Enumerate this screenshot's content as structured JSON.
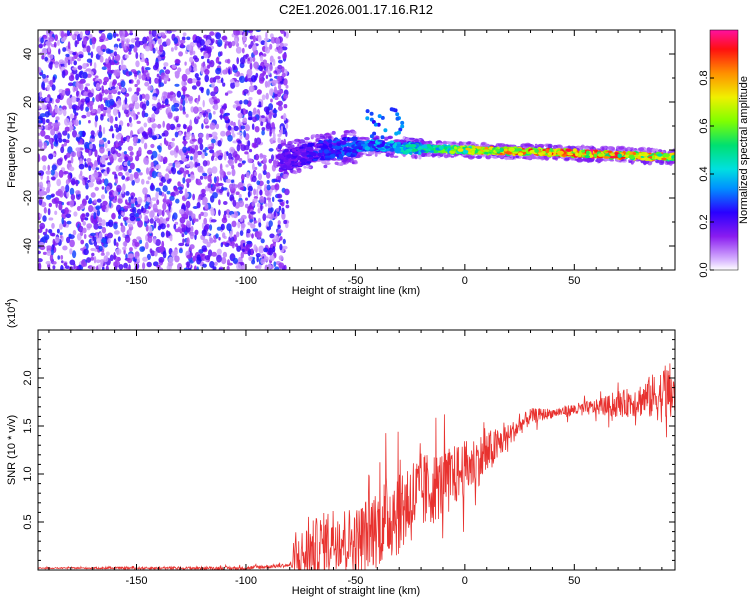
{
  "title": "C2E1.2026.001.17.16.R12",
  "chart_data": [
    {
      "type": "heatmap",
      "xlabel": "Height of straight line (km)",
      "ylabel": "Frequency (Hz)",
      "xlim": [
        -195,
        96
      ],
      "ylim": [
        -50,
        50
      ],
      "xticks": [
        -150,
        -100,
        -50,
        0,
        50
      ],
      "yticks": [
        -40,
        -20,
        0,
        20,
        40
      ],
      "colorbar": {
        "label": "Normalized spectral amplitude",
        "range": [
          0,
          1
        ],
        "ticks": [
          "0.0",
          "0.2",
          "0.4",
          "0.6",
          "0.8"
        ]
      },
      "regions": [
        {
          "name": "noise",
          "x_range": [
            -195,
            -85
          ],
          "frequency_spread": [
            -50,
            50
          ],
          "amplitude": [
            0.05,
            0.3
          ]
        },
        {
          "name": "signal",
          "x_range": [
            -85,
            96
          ],
          "frequency_trend": [
            [
              -85,
              -5
            ],
            [
              -65,
              0
            ],
            [
              -40,
              2
            ],
            [
              -30,
              1
            ],
            [
              0,
              0
            ],
            [
              40,
              -1
            ],
            [
              96,
              -3
            ]
          ],
          "amplitude_trend": [
            [
              -85,
              0.2
            ],
            [
              -60,
              0.3
            ],
            [
              -30,
              0.45
            ],
            [
              -10,
              0.6
            ],
            [
              10,
              0.85
            ],
            [
              60,
              0.95
            ],
            [
              96,
              0.8
            ]
          ]
        }
      ]
    },
    {
      "type": "line",
      "xlabel": "Height of straight line (km)",
      "ylabel": "SNR (10 * v/v)",
      "y_multiplier": "(x10",
      "y_multiplier_exp": "4",
      "y_multiplier_close": ")",
      "xlim": [
        -195,
        96
      ],
      "ylim": [
        0,
        2.5
      ],
      "xticks": [
        -150,
        -100,
        -50,
        0,
        50
      ],
      "yticks": [
        "0.5",
        "1.0",
        "1.5",
        "2.0"
      ],
      "color": "#e8322f",
      "envelope": [
        [
          -195,
          0.02
        ],
        [
          -100,
          0.02
        ],
        [
          -80,
          0.05
        ],
        [
          -70,
          0.2
        ],
        [
          -60,
          0.35
        ],
        [
          -50,
          0.3
        ],
        [
          -40,
          0.45
        ],
        [
          -30,
          0.65
        ],
        [
          -20,
          0.8
        ],
        [
          -10,
          0.9
        ],
        [
          0,
          1.05
        ],
        [
          10,
          1.2
        ],
        [
          20,
          1.4
        ],
        [
          30,
          1.6
        ],
        [
          50,
          1.67
        ],
        [
          70,
          1.72
        ],
        [
          85,
          1.8
        ],
        [
          96,
          1.85
        ]
      ],
      "noise_amplitude": [
        [
          -195,
          0.005
        ],
        [
          -80,
          0.02
        ],
        [
          -75,
          0.3
        ],
        [
          -50,
          0.35
        ],
        [
          -30,
          0.5
        ],
        [
          -10,
          0.35
        ],
        [
          10,
          0.25
        ],
        [
          20,
          0.12
        ],
        [
          40,
          0.05
        ],
        [
          60,
          0.08
        ],
        [
          80,
          0.18
        ],
        [
          96,
          0.35
        ]
      ]
    }
  ]
}
